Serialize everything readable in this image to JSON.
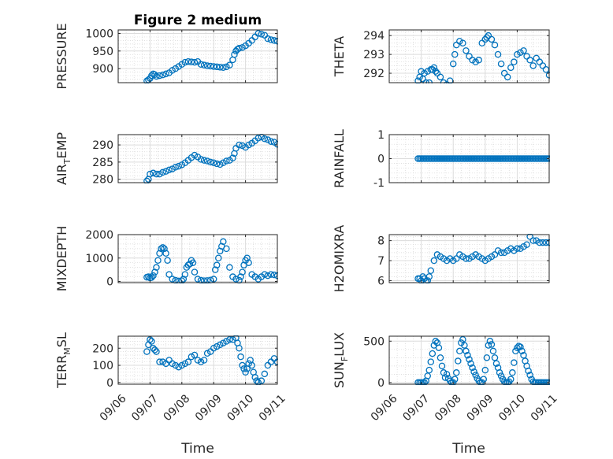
{
  "figure": {
    "title": "Figure 2 medium",
    "xlabel": "Time",
    "marker_color": "#0072bd"
  },
  "chart_data": [
    {
      "type": "scatter",
      "name": "PRESSURE",
      "ylabel_main": "PRESSURE",
      "ylabel_sub": "",
      "ylim": [
        860,
        1010
      ],
      "yticks": [
        900,
        950,
        1000
      ],
      "yticklabels": [
        "900",
        "950",
        "1000"
      ],
      "xlim": [
        0,
        5
      ],
      "xticks": [
        0,
        1,
        2,
        3,
        4,
        5
      ],
      "xticklabels": [],
      "grid": true,
      "minor_grid": true,
      "x": [
        0.9,
        0.95,
        1.0,
        1.05,
        1.1,
        1.15,
        1.2,
        1.3,
        1.4,
        1.5,
        1.6,
        1.7,
        1.8,
        1.9,
        2.0,
        2.1,
        2.2,
        2.3,
        2.4,
        2.5,
        2.6,
        2.7,
        2.8,
        2.9,
        3.0,
        3.1,
        3.2,
        3.3,
        3.4,
        3.5,
        3.6,
        3.65,
        3.7,
        3.75,
        3.8,
        3.9,
        4.0,
        4.1,
        4.2,
        4.3,
        4.4,
        4.5,
        4.6,
        4.7,
        4.8,
        4.9,
        5.0
      ],
      "y": [
        865,
        868,
        872,
        880,
        885,
        883,
        878,
        880,
        882,
        885,
        888,
        895,
        900,
        906,
        912,
        918,
        920,
        919,
        918,
        920,
        912,
        910,
        908,
        907,
        906,
        905,
        904,
        903,
        905,
        910,
        925,
        940,
        950,
        955,
        958,
        960,
        965,
        972,
        980,
        990,
        1000,
        998,
        995,
        985,
        982,
        980,
        978
      ]
    },
    {
      "type": "scatter",
      "name": "THETA",
      "ylabel_main": "THETA",
      "ylabel_sub": "",
      "ylim": [
        291.5,
        294.3
      ],
      "yticks": [
        292,
        293,
        294
      ],
      "yticklabels": [
        "292",
        "293",
        "294"
      ],
      "xlim": [
        0,
        5
      ],
      "xticks": [
        0,
        1,
        2,
        3,
        4,
        5
      ],
      "xticklabels": [],
      "grid": true,
      "minor_grid": true,
      "x": [
        0.9,
        0.95,
        1.0,
        1.05,
        1.1,
        1.15,
        1.2,
        1.25,
        1.3,
        1.35,
        1.4,
        1.45,
        1.5,
        1.6,
        1.7,
        1.8,
        1.9,
        2.0,
        2.05,
        2.1,
        2.2,
        2.3,
        2.4,
        2.5,
        2.6,
        2.7,
        2.8,
        2.9,
        3.0,
        3.05,
        3.1,
        3.2,
        3.3,
        3.4,
        3.5,
        3.6,
        3.7,
        3.8,
        3.9,
        4.0,
        4.1,
        4.2,
        4.3,
        4.4,
        4.5,
        4.6,
        4.7,
        4.8,
        4.9,
        5.0
      ],
      "y": [
        291.6,
        291.8,
        292.1,
        291.7,
        292.0,
        291.5,
        292.1,
        291.5,
        292.2,
        292.2,
        292.3,
        292.1,
        292.0,
        291.8,
        291.5,
        291.4,
        291.6,
        292.5,
        293.0,
        293.5,
        293.7,
        293.6,
        293.2,
        292.9,
        292.7,
        292.6,
        292.7,
        293.6,
        293.8,
        293.9,
        294.0,
        293.8,
        293.5,
        293.0,
        292.5,
        292.0,
        291.8,
        292.3,
        292.6,
        293.0,
        293.1,
        293.2,
        292.9,
        292.7,
        292.4,
        292.8,
        292.6,
        292.4,
        292.2,
        291.9
      ]
    },
    {
      "type": "scatter",
      "name": "AIR_TEMP",
      "ylabel_main": "AIR",
      "ylabel_sub": "T",
      "ylabel_rest": "EMP",
      "ylim": [
        279,
        293
      ],
      "yticks": [
        280,
        285,
        290
      ],
      "yticklabels": [
        "280",
        "285",
        "290"
      ],
      "xlim": [
        0,
        5
      ],
      "xticks": [
        0,
        1,
        2,
        3,
        4,
        5
      ],
      "xticklabels": [],
      "grid": true,
      "minor_grid": true,
      "x": [
        0.9,
        0.95,
        1.0,
        1.1,
        1.2,
        1.3,
        1.4,
        1.5,
        1.6,
        1.7,
        1.8,
        1.9,
        2.0,
        2.1,
        2.2,
        2.3,
        2.4,
        2.5,
        2.6,
        2.7,
        2.8,
        2.9,
        3.0,
        3.1,
        3.2,
        3.3,
        3.4,
        3.5,
        3.6,
        3.65,
        3.7,
        3.8,
        3.9,
        4.0,
        4.1,
        4.2,
        4.3,
        4.4,
        4.5,
        4.6,
        4.7,
        4.8,
        4.9,
        5.0
      ],
      "y": [
        279.5,
        280.0,
        281.5,
        281.8,
        281.5,
        281.5,
        282.0,
        282.3,
        282.7,
        283.0,
        283.5,
        283.8,
        284.2,
        284.8,
        285.5,
        286.3,
        287.0,
        286.5,
        285.8,
        285.5,
        285.3,
        285.0,
        284.8,
        284.5,
        284.3,
        284.8,
        285.3,
        285.5,
        286.2,
        287.5,
        289.0,
        290.0,
        289.8,
        289.3,
        290.0,
        290.5,
        291.2,
        292.0,
        292.3,
        291.8,
        291.5,
        291.0,
        290.8,
        290.2
      ]
    },
    {
      "type": "scatter",
      "name": "RAINFALL",
      "ylabel_main": "RAINFALL",
      "ylabel_sub": "",
      "ylim": [
        -1,
        1
      ],
      "yticks": [
        -1,
        0,
        1
      ],
      "yticklabels": [
        "-1",
        "0",
        "1"
      ],
      "xlim": [
        0,
        5
      ],
      "xticks": [
        0,
        1,
        2,
        3,
        4,
        5
      ],
      "xticklabels": [],
      "grid": true,
      "minor_grid": true,
      "x": [
        0.9,
        0.95,
        1.0,
        1.05,
        1.1,
        1.15,
        1.2,
        1.25,
        1.3,
        1.35,
        1.4,
        1.45,
        1.5,
        1.55,
        1.6,
        1.65,
        1.7,
        1.75,
        1.8,
        1.85,
        1.9,
        1.95,
        2.0,
        2.05,
        2.1,
        2.15,
        2.2,
        2.25,
        2.3,
        2.35,
        2.4,
        2.45,
        2.5,
        2.55,
        2.6,
        2.65,
        2.7,
        2.75,
        2.8,
        2.85,
        2.9,
        2.95,
        3.0,
        3.05,
        3.1,
        3.15,
        3.2,
        3.25,
        3.3,
        3.35,
        3.4,
        3.45,
        3.5,
        3.55,
        3.6,
        3.65,
        3.7,
        3.75,
        3.8,
        3.85,
        3.9,
        3.95,
        4.0,
        4.05,
        4.1,
        4.15,
        4.2,
        4.25,
        4.3,
        4.35,
        4.4,
        4.45,
        4.5,
        4.55,
        4.6,
        4.65,
        4.7,
        4.75,
        4.8,
        4.85,
        4.9,
        4.95,
        5.0
      ],
      "y": [
        0,
        0,
        0,
        0,
        0,
        0,
        0,
        0,
        0,
        0,
        0,
        0,
        0,
        0,
        0,
        0,
        0,
        0,
        0,
        0,
        0,
        0,
        0,
        0,
        0,
        0,
        0,
        0,
        0,
        0,
        0,
        0,
        0,
        0,
        0,
        0,
        0,
        0,
        0,
        0,
        0,
        0,
        0,
        0,
        0,
        0,
        0,
        0,
        0,
        0,
        0,
        0,
        0,
        0,
        0,
        0,
        0,
        0,
        0,
        0,
        0,
        0,
        0,
        0,
        0,
        0,
        0,
        0,
        0,
        0,
        0,
        0,
        0,
        0,
        0,
        0,
        0,
        0,
        0,
        0,
        0,
        0,
        0
      ]
    },
    {
      "type": "scatter",
      "name": "MIXDEPTH",
      "ylabel_main": "MIXDEPTH",
      "ylabel_sub": "",
      "ylim": [
        -50,
        2000
      ],
      "yticks": [
        0,
        1000,
        2000
      ],
      "yticklabels": [
        "0",
        "1000",
        "2000"
      ],
      "xlim": [
        0,
        5
      ],
      "xticks": [
        0,
        1,
        2,
        3,
        4,
        5
      ],
      "xticklabels": [],
      "grid": true,
      "minor_grid": true,
      "x": [
        0.9,
        0.95,
        1.0,
        1.05,
        1.1,
        1.15,
        1.2,
        1.25,
        1.3,
        1.35,
        1.4,
        1.45,
        1.5,
        1.55,
        1.6,
        1.7,
        1.8,
        1.9,
        2.0,
        2.05,
        2.1,
        2.15,
        2.2,
        2.25,
        2.3,
        2.35,
        2.4,
        2.5,
        2.6,
        2.7,
        2.8,
        2.9,
        3.0,
        3.05,
        3.1,
        3.15,
        3.2,
        3.25,
        3.3,
        3.4,
        3.5,
        3.6,
        3.7,
        3.8,
        3.85,
        3.9,
        3.95,
        4.0,
        4.05,
        4.1,
        4.2,
        4.3,
        4.4,
        4.5,
        4.6,
        4.7,
        4.8,
        4.9,
        5.0
      ],
      "y": [
        180,
        200,
        150,
        170,
        250,
        400,
        600,
        900,
        1200,
        1400,
        1450,
        1400,
        1200,
        900,
        300,
        100,
        50,
        20,
        30,
        100,
        300,
        600,
        700,
        750,
        900,
        800,
        400,
        100,
        50,
        30,
        40,
        60,
        100,
        500,
        700,
        1000,
        1300,
        1500,
        1700,
        1400,
        600,
        200,
        100,
        50,
        200,
        400,
        700,
        900,
        1000,
        800,
        300,
        200,
        100,
        200,
        300,
        250,
        300,
        280,
        250
      ]
    },
    {
      "type": "scatter",
      "name": "H2OMIXRA",
      "ylabel_main": "H2OMIXRA",
      "ylabel_sub": "",
      "ylim": [
        5.9,
        8.3
      ],
      "yticks": [
        6,
        7,
        8
      ],
      "yticklabels": [
        "6",
        "7",
        "8"
      ],
      "xlim": [
        0,
        5
      ],
      "xticks": [
        0,
        1,
        2,
        3,
        4,
        5
      ],
      "xticklabels": [],
      "grid": true,
      "minor_grid": true,
      "x": [
        0.9,
        0.95,
        1.0,
        1.05,
        1.1,
        1.15,
        1.2,
        1.25,
        1.3,
        1.4,
        1.5,
        1.6,
        1.7,
        1.8,
        1.9,
        2.0,
        2.1,
        2.2,
        2.3,
        2.4,
        2.5,
        2.6,
        2.7,
        2.8,
        2.9,
        3.0,
        3.1,
        3.2,
        3.3,
        3.4,
        3.5,
        3.6,
        3.7,
        3.8,
        3.9,
        4.0,
        4.1,
        4.2,
        4.3,
        4.4,
        4.5,
        4.6,
        4.7,
        4.8,
        4.9,
        5.0
      ],
      "y": [
        6.1,
        6.1,
        6.0,
        6.2,
        6.1,
        5.95,
        6.0,
        6.2,
        6.5,
        7.0,
        7.3,
        7.2,
        7.1,
        7.0,
        7.1,
        7.0,
        7.1,
        7.3,
        7.2,
        7.1,
        7.1,
        7.2,
        7.3,
        7.2,
        7.1,
        7.0,
        7.1,
        7.2,
        7.3,
        7.5,
        7.4,
        7.4,
        7.5,
        7.6,
        7.5,
        7.6,
        7.6,
        7.7,
        7.8,
        8.2,
        8.0,
        8.0,
        7.9,
        7.9,
        7.9,
        7.9
      ]
    },
    {
      "type": "scatter",
      "name": "TERR_MSL",
      "ylabel_main": "TERR",
      "ylabel_sub": "M",
      "ylabel_rest": "SL",
      "ylim": [
        -10,
        270
      ],
      "yticks": [
        0,
        100,
        200
      ],
      "yticklabels": [
        "0",
        "100",
        "200"
      ],
      "xlim": [
        0,
        5
      ],
      "xticks": [
        0,
        1,
        2,
        3,
        4,
        5
      ],
      "xticklabels": [
        "09/06",
        "09/07",
        "09/08",
        "09/09",
        "09/10",
        "09/11"
      ],
      "grid": true,
      "minor_grid": true,
      "x": [
        0.9,
        0.95,
        1.0,
        1.05,
        1.1,
        1.15,
        1.2,
        1.3,
        1.4,
        1.5,
        1.6,
        1.7,
        1.8,
        1.9,
        2.0,
        2.1,
        2.2,
        2.3,
        2.4,
        2.5,
        2.6,
        2.7,
        2.8,
        2.9,
        3.0,
        3.1,
        3.2,
        3.3,
        3.4,
        3.5,
        3.6,
        3.7,
        3.75,
        3.8,
        3.85,
        3.9,
        3.95,
        4.0,
        4.05,
        4.1,
        4.15,
        4.2,
        4.25,
        4.3,
        4.35,
        4.4,
        4.5,
        4.6,
        4.7,
        4.8,
        4.9,
        5.0
      ],
      "y": [
        180,
        220,
        250,
        240,
        200,
        190,
        180,
        120,
        120,
        110,
        130,
        110,
        100,
        90,
        100,
        110,
        120,
        150,
        160,
        130,
        120,
        130,
        170,
        180,
        200,
        210,
        220,
        230,
        240,
        250,
        250,
        260,
        230,
        200,
        150,
        100,
        80,
        60,
        80,
        110,
        130,
        100,
        60,
        30,
        10,
        0,
        10,
        50,
        100,
        120,
        140,
        120
      ]
    },
    {
      "type": "scatter",
      "name": "SUN_FLUX",
      "ylabel_main": "SUN",
      "ylabel_sub": "F",
      "ylabel_rest": "LUX",
      "ylim": [
        -20,
        560
      ],
      "yticks": [
        0,
        500
      ],
      "yticklabels": [
        "0",
        "500"
      ],
      "xlim": [
        0,
        5
      ],
      "xticks": [
        0,
        1,
        2,
        3,
        4,
        5
      ],
      "xticklabels": [
        "09/06",
        "09/07",
        "09/08",
        "09/09",
        "09/10",
        "09/11"
      ],
      "grid": true,
      "minor_grid": true,
      "x": [
        0.9,
        0.95,
        1.0,
        1.05,
        1.1,
        1.15,
        1.2,
        1.25,
        1.3,
        1.35,
        1.4,
        1.45,
        1.5,
        1.55,
        1.6,
        1.65,
        1.7,
        1.75,
        1.8,
        1.85,
        1.9,
        1.95,
        2.0,
        2.05,
        2.1,
        2.15,
        2.2,
        2.25,
        2.3,
        2.35,
        2.4,
        2.45,
        2.5,
        2.55,
        2.6,
        2.65,
        2.7,
        2.75,
        2.8,
        2.85,
        2.9,
        2.95,
        3.0,
        3.05,
        3.1,
        3.15,
        3.2,
        3.25,
        3.3,
        3.35,
        3.4,
        3.45,
        3.5,
        3.55,
        3.6,
        3.65,
        3.7,
        3.75,
        3.8,
        3.85,
        3.9,
        3.95,
        4.0,
        4.05,
        4.1,
        4.15,
        4.2,
        4.25,
        4.3,
        4.35,
        4.4,
        4.45,
        4.5,
        4.55,
        4.6,
        4.65,
        4.7,
        4.75,
        4.8,
        4.85,
        4.9,
        4.95,
        5.0
      ],
      "y": [
        0,
        0,
        0,
        0,
        0,
        20,
        80,
        150,
        250,
        350,
        450,
        500,
        480,
        420,
        300,
        200,
        120,
        60,
        100,
        50,
        20,
        0,
        0,
        40,
        120,
        260,
        380,
        480,
        520,
        450,
        380,
        330,
        280,
        230,
        180,
        130,
        90,
        50,
        20,
        0,
        0,
        40,
        150,
        300,
        450,
        500,
        460,
        380,
        300,
        230,
        180,
        120,
        80,
        40,
        10,
        0,
        0,
        10,
        40,
        120,
        240,
        380,
        420,
        440,
        430,
        380,
        330,
        260,
        200,
        140,
        90,
        40,
        10,
        0,
        0,
        0,
        0,
        0,
        0,
        0,
        0,
        0,
        0
      ]
    }
  ]
}
